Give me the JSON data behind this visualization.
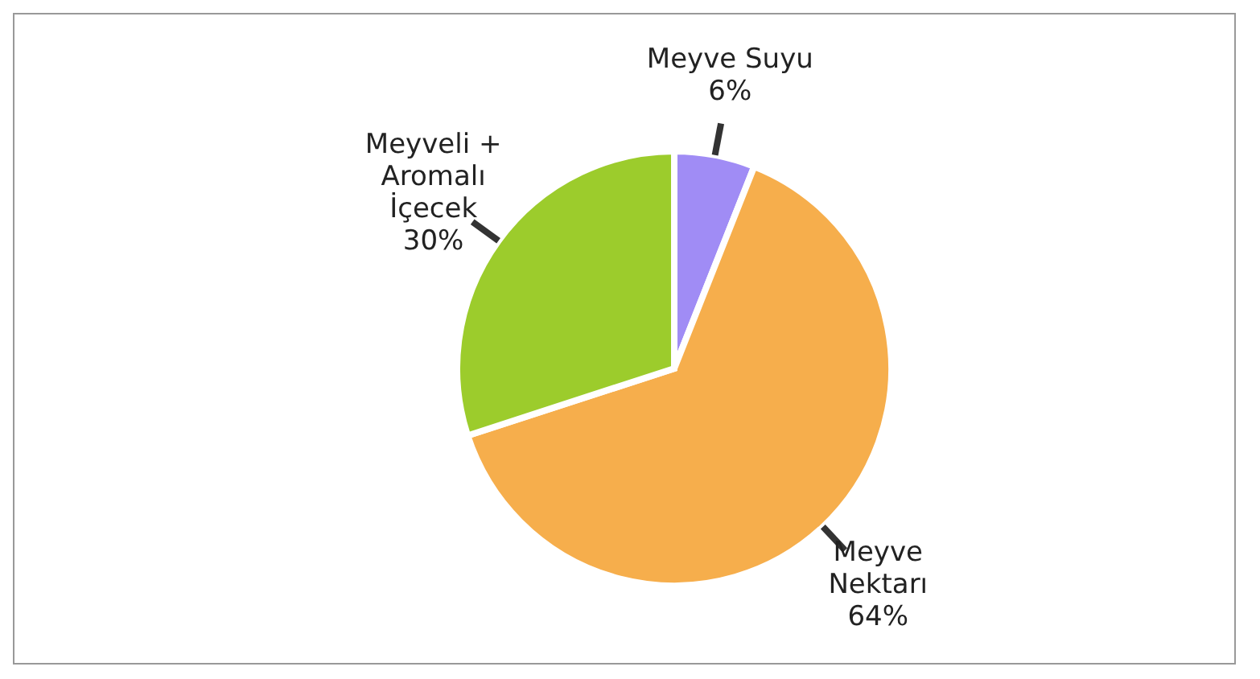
{
  "chart_data": {
    "type": "pie",
    "categories": [
      "Meyve Suyu",
      "Meyve Nektarı",
      "Meyveli + Aromalı İçecek"
    ],
    "values": [
      6,
      64,
      30
    ],
    "colors": [
      "#a08cf5",
      "#f6ae4c",
      "#9ccc2c"
    ],
    "value_labels": [
      "6%",
      "64%",
      "30%"
    ],
    "legend": false
  }
}
